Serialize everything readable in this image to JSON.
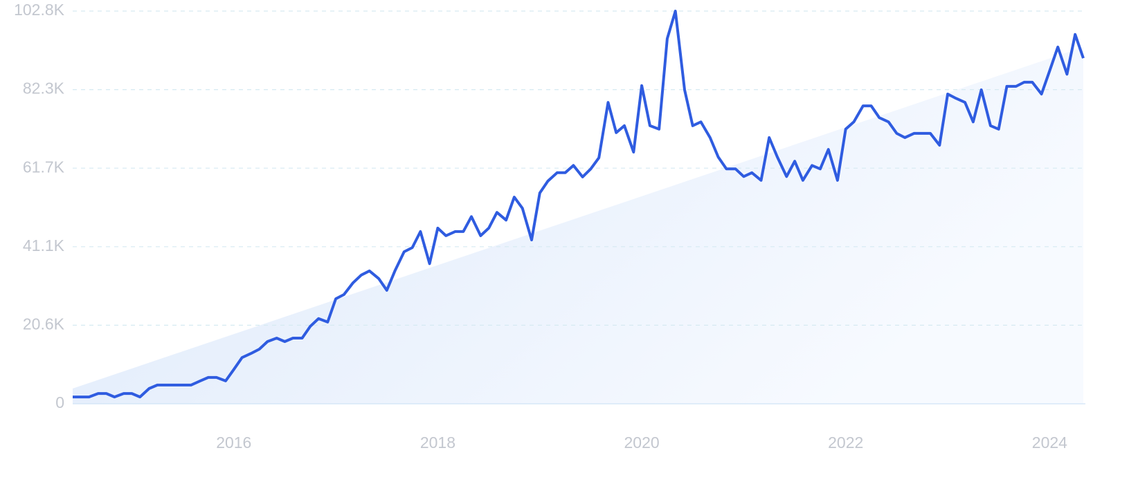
{
  "chart_data": {
    "type": "line",
    "x": [
      2014.42,
      2014.5,
      2014.58,
      2014.67,
      2014.75,
      2014.83,
      2014.92,
      2015,
      2015.08,
      2015.17,
      2015.25,
      2015.33,
      2015.42,
      2015.5,
      2015.58,
      2015.67,
      2015.75,
      2015.83,
      2015.92,
      2016,
      2016.08,
      2016.17,
      2016.25,
      2016.33,
      2016.42,
      2016.5,
      2016.58,
      2016.67,
      2016.75,
      2016.83,
      2016.92,
      2017,
      2017.08,
      2017.17,
      2017.25,
      2017.33,
      2017.42,
      2017.5,
      2017.58,
      2017.67,
      2017.75,
      2017.83,
      2017.92,
      2018,
      2018.08,
      2018.17,
      2018.25,
      2018.33,
      2018.42,
      2018.5,
      2018.58,
      2018.67,
      2018.75,
      2018.83,
      2018.92,
      2019,
      2019.08,
      2019.17,
      2019.25,
      2019.33,
      2019.42,
      2019.5,
      2019.58,
      2019.67,
      2019.75,
      2019.83,
      2019.92,
      2020,
      2020.08,
      2020.17,
      2020.25,
      2020.33,
      2020.42,
      2020.5,
      2020.58,
      2020.67,
      2020.75,
      2020.83,
      2020.92,
      2021,
      2021.08,
      2021.17,
      2021.25,
      2021.33,
      2021.42,
      2021.5,
      2021.58,
      2021.67,
      2021.75,
      2021.83,
      2021.92,
      2022,
      2022.08,
      2022.17,
      2022.25,
      2022.33,
      2022.42,
      2022.5,
      2022.58,
      2022.67,
      2022.75,
      2022.83,
      2022.92,
      2023,
      2023.08,
      2023.17,
      2023.25,
      2023.33,
      2023.42,
      2023.5,
      2023.58,
      2023.67,
      2023.75,
      2023.83,
      2023.92,
      2024,
      2024.08,
      2024.17,
      2024.25,
      2024.33
    ],
    "series": [
      {
        "color": "#2f5ce0",
        "values": [
          1800,
          1800,
          1800,
          2700,
          2700,
          1800,
          2700,
          2700,
          1800,
          4000,
          4900,
          4900,
          4900,
          4900,
          4900,
          6000,
          6900,
          6900,
          6000,
          9000,
          12100,
          13200,
          14300,
          16300,
          17200,
          16300,
          17200,
          17200,
          20300,
          22300,
          21400,
          27500,
          28600,
          31700,
          33700,
          34800,
          32800,
          29700,
          34800,
          39800,
          40900,
          45100,
          36700,
          46000,
          44000,
          45100,
          45100,
          49000,
          44000,
          46000,
          50100,
          48100,
          54100,
          51200,
          42900,
          55200,
          58300,
          60500,
          60500,
          62400,
          59400,
          61500,
          64400,
          78900,
          71000,
          72800,
          65900,
          83300,
          72800,
          71900,
          95600,
          102800,
          82200,
          72800,
          73800,
          69700,
          64600,
          61500,
          61500,
          59500,
          60500,
          58500,
          69700,
          64600,
          59500,
          63500,
          58500,
          62400,
          61500,
          66600,
          58500,
          71900,
          73800,
          78000,
          78000,
          74900,
          73800,
          70800,
          69700,
          70800,
          70800,
          70800,
          67700,
          81100,
          80000,
          78900,
          73800,
          82200,
          72800,
          71900,
          83100,
          83100,
          84200,
          84200,
          81100,
          87200,
          93400,
          86300,
          96700,
          90500
        ]
      }
    ],
    "trend": [
      4000,
      93400
    ],
    "xlim": [
      2014.42,
      2024.33
    ],
    "xticks": [
      2016,
      2018,
      2020,
      2022,
      2024
    ],
    "ylim": [
      0,
      102820
    ],
    "yticks": [
      0,
      {
        "value": 20564,
        "label": "20.6K"
      },
      {
        "value": 41128,
        "label": "41.1K"
      },
      {
        "value": 61692,
        "label": "61.7K"
      },
      {
        "value": 82256,
        "label": "82.3K"
      },
      {
        "value": 102820,
        "label": "102.8K"
      }
    ],
    "grid": true
  }
}
